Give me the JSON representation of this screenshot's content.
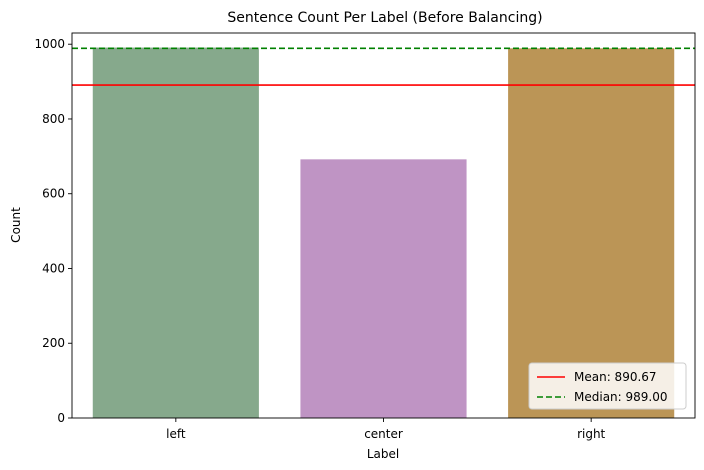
{
  "chart_data": {
    "type": "bar",
    "title": "Sentence Count Per Label (Before Balancing)",
    "xlabel": "Label",
    "ylabel": "Count",
    "categories": [
      "left",
      "center",
      "right"
    ],
    "values": [
      991,
      692,
      989
    ],
    "bar_colors": [
      "#86a98c",
      "#bf94c4",
      "#bb9556"
    ],
    "ylim": [
      0,
      1030
    ],
    "yticks": [
      0,
      200,
      400,
      600,
      800,
      1000
    ],
    "grid": false,
    "reference_lines": [
      {
        "label": "Mean: 890.67",
        "value": 890.67,
        "color": "#ff0000",
        "style": "solid"
      },
      {
        "label": "Median: 989.00",
        "value": 989.0,
        "color": "#008000",
        "style": "dashed"
      }
    ],
    "legend_position": "bottom-right"
  }
}
